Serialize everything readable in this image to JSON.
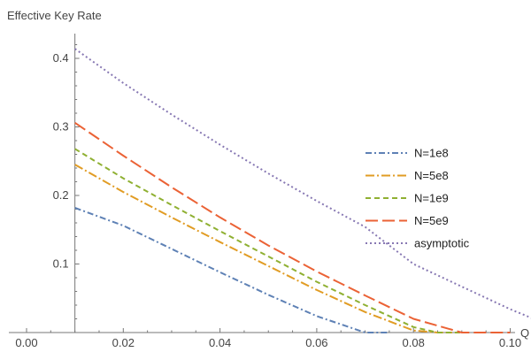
{
  "chart_data": {
    "type": "line",
    "title": "",
    "ylabel": "Effective Key Rate",
    "xlabel": "Q",
    "xlim": [
      0.0,
      0.112
    ],
    "ylim": [
      0.0,
      0.43
    ],
    "x_ticks": [
      "0.00",
      "0.02",
      "0.04",
      "0.06",
      "0.08",
      "0.10"
    ],
    "y_ticks": [
      "0.1",
      "0.2",
      "0.3",
      "0.4"
    ],
    "x_tick_values": [
      0.0,
      0.02,
      0.04,
      0.06,
      0.08,
      0.1
    ],
    "y_tick_values": [
      0.1,
      0.2,
      0.3,
      0.4
    ],
    "y_axis_at_x": 0.01,
    "grid": false,
    "legend_position": "right",
    "series": [
      {
        "name": "N=1e8",
        "color": "#5E81B5",
        "dash": "dot-dash",
        "points": [
          [
            0.01,
            0.182
          ],
          [
            0.02,
            0.156
          ],
          [
            0.03,
            0.122
          ],
          [
            0.04,
            0.088
          ],
          [
            0.05,
            0.055
          ],
          [
            0.06,
            0.024
          ],
          [
            0.07,
            0.0
          ],
          [
            0.075,
            0.0
          ]
        ]
      },
      {
        "name": "N=5e8",
        "color": "#E19C24",
        "dash": "dash-dot",
        "points": [
          [
            0.01,
            0.245
          ],
          [
            0.02,
            0.205
          ],
          [
            0.03,
            0.168
          ],
          [
            0.04,
            0.132
          ],
          [
            0.05,
            0.097
          ],
          [
            0.06,
            0.062
          ],
          [
            0.07,
            0.03
          ],
          [
            0.08,
            0.003
          ],
          [
            0.085,
            0.0
          ],
          [
            0.088,
            0.0
          ]
        ]
      },
      {
        "name": "N=1e9",
        "color": "#8FB032",
        "dash": "dashed",
        "points": [
          [
            0.01,
            0.268
          ],
          [
            0.02,
            0.225
          ],
          [
            0.03,
            0.186
          ],
          [
            0.04,
            0.148
          ],
          [
            0.05,
            0.111
          ],
          [
            0.06,
            0.074
          ],
          [
            0.07,
            0.04
          ],
          [
            0.08,
            0.008
          ],
          [
            0.085,
            0.0
          ],
          [
            0.09,
            0.0
          ]
        ]
      },
      {
        "name": "N=5e9",
        "color": "#EB6235",
        "dash": "long-dashed",
        "points": [
          [
            0.01,
            0.306
          ],
          [
            0.02,
            0.258
          ],
          [
            0.03,
            0.212
          ],
          [
            0.04,
            0.168
          ],
          [
            0.05,
            0.127
          ],
          [
            0.06,
            0.089
          ],
          [
            0.07,
            0.054
          ],
          [
            0.08,
            0.02
          ],
          [
            0.09,
            0.0
          ],
          [
            0.1,
            0.0
          ]
        ]
      },
      {
        "name": "asymptotic",
        "color": "#8778B3",
        "dash": "dotted",
        "points": [
          [
            0.01,
            0.414
          ],
          [
            0.02,
            0.364
          ],
          [
            0.03,
            0.318
          ],
          [
            0.04,
            0.274
          ],
          [
            0.05,
            0.232
          ],
          [
            0.06,
            0.192
          ],
          [
            0.07,
            0.154
          ],
          [
            0.08,
            0.1
          ],
          [
            0.09,
            0.067
          ],
          [
            0.1,
            0.034
          ],
          [
            0.11,
            0.005
          ]
        ]
      }
    ]
  }
}
